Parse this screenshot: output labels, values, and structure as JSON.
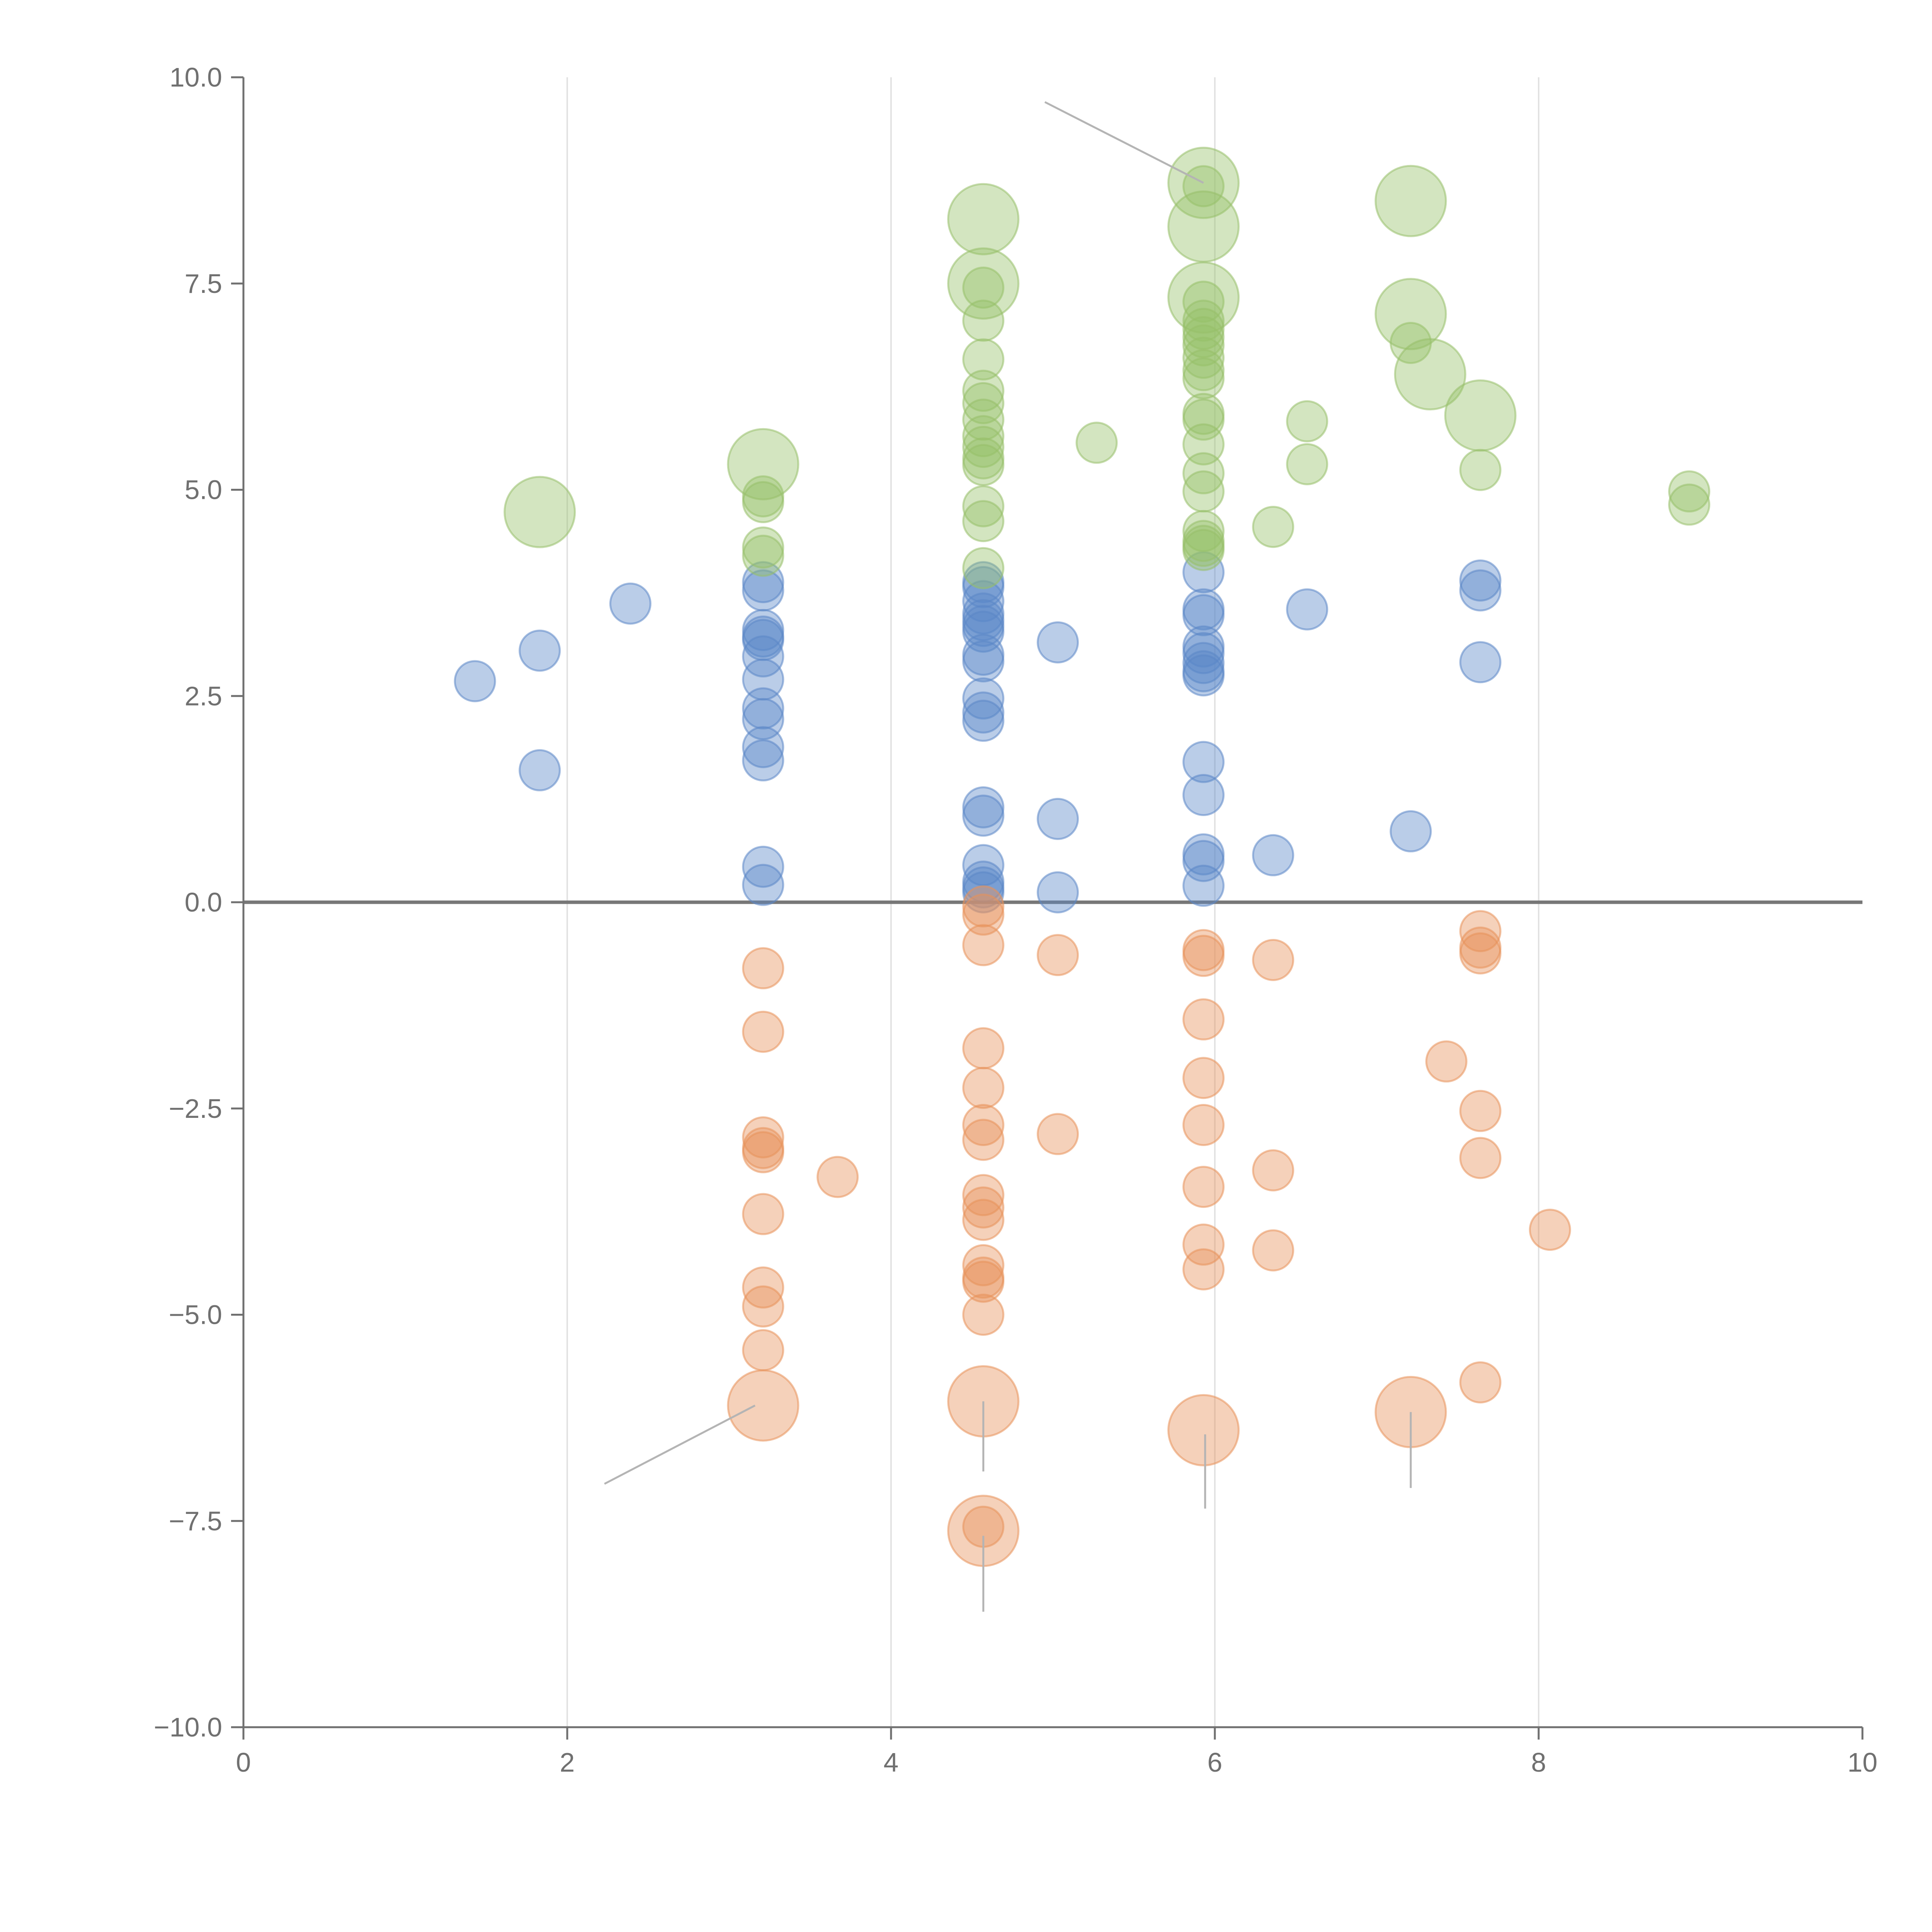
{
  "chart_data": {
    "type": "scatter",
    "title": "",
    "xlabel": "",
    "ylabel": "",
    "xlim": [
      0,
      10
    ],
    "ylim": [
      -10,
      10
    ],
    "x_ticks": [
      0,
      2,
      4,
      6,
      8,
      10
    ],
    "x_tick_labels": [
      "0",
      "2",
      "4",
      "6",
      "8",
      "10"
    ],
    "y_ticks": [
      10,
      7.5,
      5,
      2.5,
      0,
      -2.5,
      -5,
      -7.5,
      -10
    ],
    "y_tick_labels": [
      "10.0",
      "7.5",
      "5.0",
      "2.5",
      "0.0",
      "−2.5",
      "−5.0",
      "−7.5",
      "−10.0"
    ],
    "vertical_grid_x": [
      2,
      4,
      6,
      8
    ],
    "reference_line_y": 0,
    "grid": true,
    "legend": "none",
    "series": [
      {
        "name": "blue",
        "color": "#5b87c7",
        "size": 1,
        "points": [
          [
            1.43,
            2.68
          ],
          [
            1.83,
            3.05
          ],
          [
            1.83,
            1.6
          ],
          [
            2.39,
            3.62
          ],
          [
            3.21,
            3.88
          ],
          [
            3.21,
            3.78
          ],
          [
            3.21,
            3.3
          ],
          [
            3.21,
            3.22
          ],
          [
            3.21,
            3.18
          ],
          [
            3.21,
            2.98
          ],
          [
            3.21,
            2.7
          ],
          [
            3.21,
            2.35
          ],
          [
            3.21,
            2.22
          ],
          [
            3.21,
            1.88
          ],
          [
            3.21,
            1.72
          ],
          [
            3.21,
            0.43
          ],
          [
            3.21,
            0.21
          ],
          [
            4.57,
            3.88
          ],
          [
            4.57,
            3.82
          ],
          [
            4.57,
            3.65
          ],
          [
            4.57,
            3.5
          ],
          [
            4.57,
            3.42
          ],
          [
            4.57,
            3.35
          ],
          [
            4.57,
            3.28
          ],
          [
            4.57,
            3.0
          ],
          [
            4.57,
            2.92
          ],
          [
            4.57,
            2.47
          ],
          [
            4.57,
            2.3
          ],
          [
            4.57,
            2.2
          ],
          [
            4.57,
            1.15
          ],
          [
            4.57,
            1.05
          ],
          [
            4.57,
            0.45
          ],
          [
            4.57,
            0.25
          ],
          [
            4.57,
            0.18
          ],
          [
            4.57,
            0.12
          ],
          [
            5.03,
            3.15
          ],
          [
            5.03,
            1.01
          ],
          [
            5.03,
            0.12
          ],
          [
            5.93,
            4.0
          ],
          [
            5.93,
            3.55
          ],
          [
            5.93,
            3.48
          ],
          [
            5.93,
            3.1
          ],
          [
            5.93,
            3.02
          ],
          [
            5.93,
            2.9
          ],
          [
            5.93,
            2.8
          ],
          [
            5.93,
            2.75
          ],
          [
            5.93,
            1.7
          ],
          [
            5.93,
            1.3
          ],
          [
            5.93,
            0.58
          ],
          [
            5.93,
            0.5
          ],
          [
            5.93,
            0.2
          ],
          [
            6.36,
            0.57
          ],
          [
            6.57,
            3.55
          ],
          [
            7.21,
            0.86
          ],
          [
            7.64,
            3.9
          ],
          [
            7.64,
            3.78
          ],
          [
            7.64,
            2.91
          ]
        ]
      },
      {
        "name": "orange",
        "color": "#e8925a",
        "size": 1,
        "points": [
          [
            3.21,
            -0.8
          ],
          [
            3.21,
            -1.57
          ],
          [
            3.21,
            -2.85
          ],
          [
            3.21,
            -2.98
          ],
          [
            3.21,
            -3.03
          ],
          [
            3.21,
            -3.78
          ],
          [
            3.21,
            -4.67
          ],
          [
            3.21,
            -4.9
          ],
          [
            3.21,
            -5.43
          ],
          [
            3.67,
            -3.33
          ],
          [
            4.57,
            -0.05
          ],
          [
            4.57,
            -0.15
          ],
          [
            4.57,
            -0.52
          ],
          [
            4.57,
            -1.77
          ],
          [
            4.57,
            -2.25
          ],
          [
            4.57,
            -2.7
          ],
          [
            4.57,
            -2.88
          ],
          [
            4.57,
            -3.55
          ],
          [
            4.57,
            -3.7
          ],
          [
            4.57,
            -3.85
          ],
          [
            4.57,
            -4.4
          ],
          [
            4.57,
            -4.55
          ],
          [
            4.57,
            -4.6
          ],
          [
            4.57,
            -5.0
          ],
          [
            4.57,
            -7.57
          ],
          [
            5.03,
            -0.64
          ],
          [
            5.03,
            -2.81
          ],
          [
            5.93,
            -0.58
          ],
          [
            5.93,
            -0.65
          ],
          [
            5.93,
            -1.42
          ],
          [
            5.93,
            -2.13
          ],
          [
            5.93,
            -2.7
          ],
          [
            5.93,
            -3.45
          ],
          [
            5.93,
            -4.15
          ],
          [
            5.93,
            -4.45
          ],
          [
            6.36,
            -0.7
          ],
          [
            6.36,
            -3.25
          ],
          [
            6.36,
            -4.22
          ],
          [
            7.43,
            -1.93
          ],
          [
            7.64,
            -0.35
          ],
          [
            7.64,
            -0.55
          ],
          [
            7.64,
            -0.62
          ],
          [
            7.64,
            -2.53
          ],
          [
            7.64,
            -3.1
          ],
          [
            7.64,
            -5.82
          ],
          [
            8.07,
            -3.97
          ]
        ]
      },
      {
        "name": "green",
        "color": "#97c06a",
        "size": 1,
        "points": [
          [
            3.21,
            4.92
          ],
          [
            3.21,
            4.85
          ],
          [
            3.21,
            4.3
          ],
          [
            3.21,
            4.2
          ],
          [
            4.57,
            7.45
          ],
          [
            4.57,
            7.05
          ],
          [
            4.57,
            6.58
          ],
          [
            4.57,
            6.2
          ],
          [
            4.57,
            6.05
          ],
          [
            4.57,
            5.85
          ],
          [
            4.57,
            5.65
          ],
          [
            4.57,
            5.52
          ],
          [
            4.57,
            5.38
          ],
          [
            4.57,
            5.3
          ],
          [
            4.57,
            4.8
          ],
          [
            4.57,
            4.62
          ],
          [
            4.57,
            4.05
          ],
          [
            5.27,
            5.57
          ],
          [
            5.93,
            8.68
          ],
          [
            5.93,
            7.28
          ],
          [
            5.93,
            7.05
          ],
          [
            5.93,
            6.95
          ],
          [
            5.93,
            6.85
          ],
          [
            5.93,
            6.75
          ],
          [
            5.93,
            6.6
          ],
          [
            5.93,
            6.45
          ],
          [
            5.93,
            6.35
          ],
          [
            5.93,
            5.92
          ],
          [
            5.93,
            5.85
          ],
          [
            5.93,
            5.55
          ],
          [
            5.93,
            5.2
          ],
          [
            5.93,
            4.98
          ],
          [
            5.93,
            4.5
          ],
          [
            5.93,
            4.38
          ],
          [
            5.93,
            4.32
          ],
          [
            5.93,
            4.27
          ],
          [
            6.36,
            4.55
          ],
          [
            6.57,
            5.83
          ],
          [
            6.57,
            5.31
          ],
          [
            7.21,
            6.78
          ],
          [
            7.64,
            5.24
          ],
          [
            8.93,
            4.98
          ],
          [
            8.93,
            4.82
          ]
        ]
      },
      {
        "name": "large-green",
        "color": "#97c06a",
        "size": 2,
        "points": [
          [
            1.83,
            4.73
          ],
          [
            3.21,
            5.31
          ],
          [
            4.57,
            8.28
          ],
          [
            4.57,
            7.5
          ],
          [
            5.93,
            8.72
          ],
          [
            5.93,
            8.19
          ],
          [
            5.93,
            7.33
          ],
          [
            7.21,
            8.5
          ],
          [
            7.21,
            7.13
          ],
          [
            7.33,
            6.4
          ],
          [
            7.64,
            5.9
          ]
        ]
      },
      {
        "name": "large-orange",
        "color": "#e8925a",
        "size": 2,
        "points": [
          [
            3.21,
            -6.1
          ],
          [
            4.57,
            -6.05
          ],
          [
            4.57,
            -7.62
          ],
          [
            5.93,
            -6.4
          ],
          [
            7.21,
            -6.18
          ]
        ]
      }
    ],
    "annotation_lines": [
      {
        "from": [
          4.95,
          9.7
        ],
        "to": [
          5.93,
          8.72
        ]
      },
      {
        "from": [
          2.23,
          -7.05
        ],
        "to": [
          3.16,
          -6.1
        ]
      },
      {
        "from": [
          4.57,
          -6.05
        ],
        "to": [
          4.57,
          -6.9
        ]
      },
      {
        "from": [
          4.57,
          -7.68
        ],
        "to": [
          4.57,
          -8.6
        ]
      },
      {
        "from": [
          5.94,
          -6.45
        ],
        "to": [
          5.94,
          -7.35
        ]
      },
      {
        "from": [
          7.21,
          -6.18
        ],
        "to": [
          7.21,
          -7.1
        ]
      }
    ]
  }
}
